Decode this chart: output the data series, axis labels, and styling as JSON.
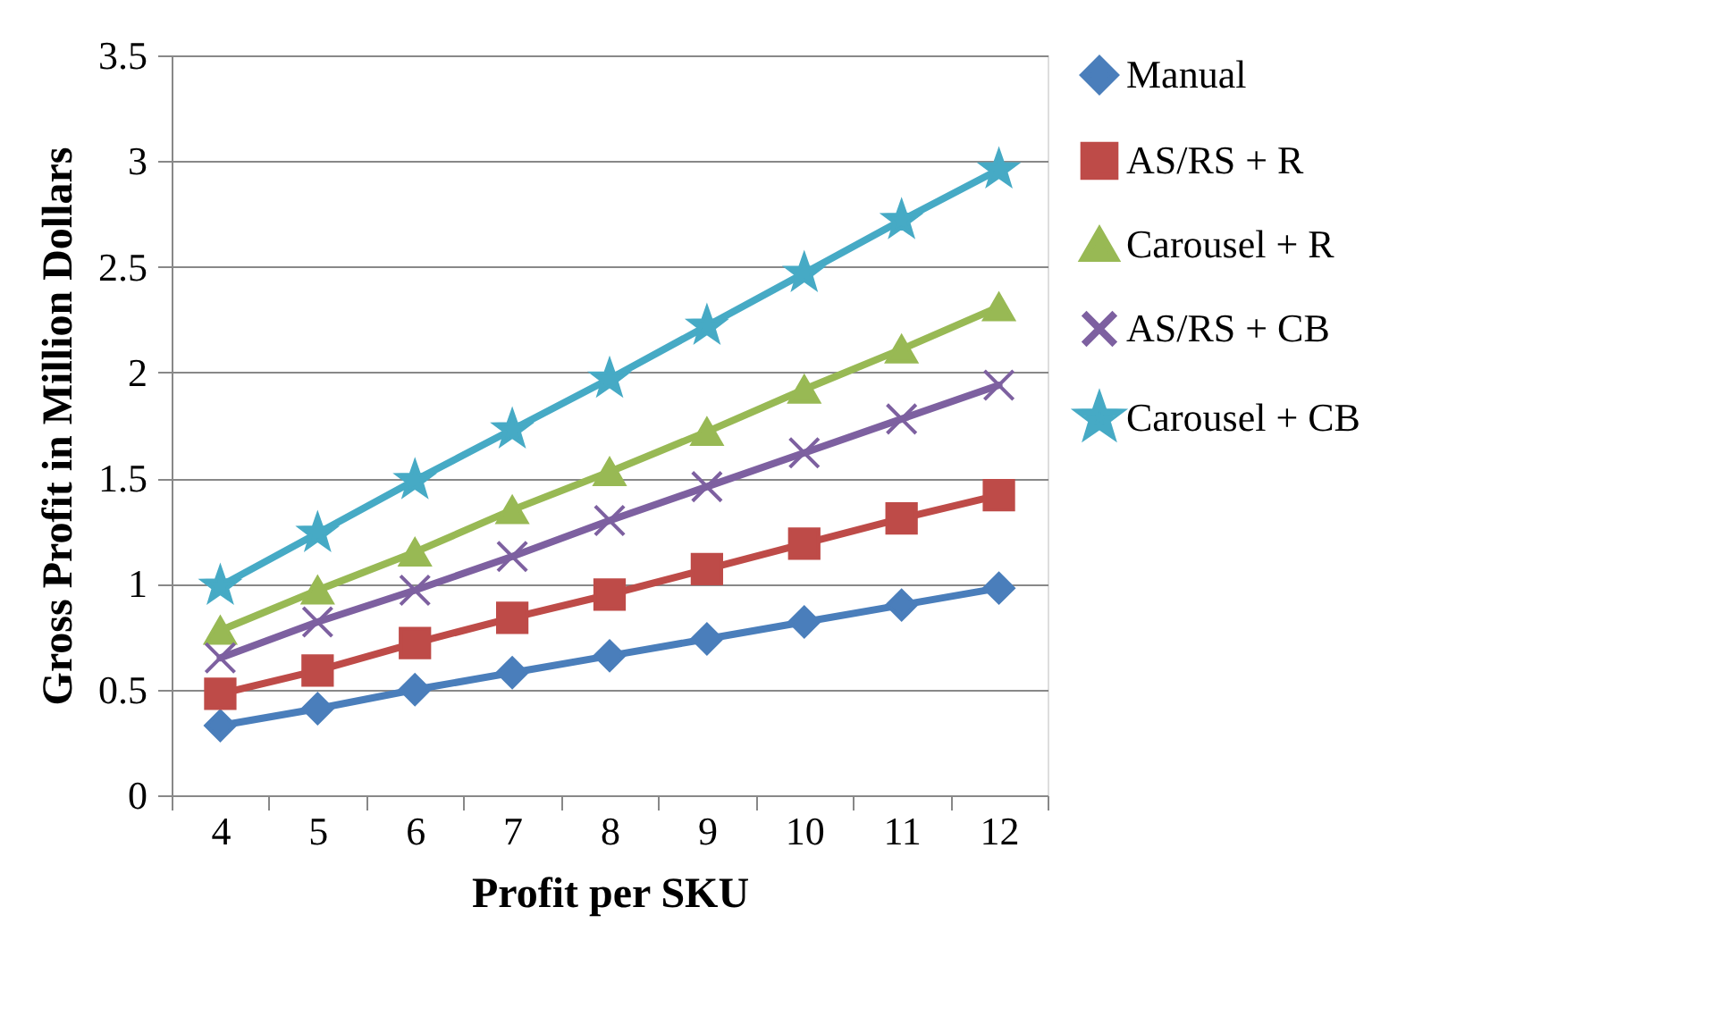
{
  "chart_data": {
    "type": "line",
    "xlabel": "Profit per SKU",
    "ylabel": "Gross Profit in Million Dollars",
    "categories": [
      "4",
      "5",
      "6",
      "7",
      "8",
      "9",
      "10",
      "11",
      "12"
    ],
    "series": [
      {
        "name": "Manual",
        "color": "#4a7ebb",
        "marker": "diamond",
        "values": [
          0.33,
          0.41,
          0.5,
          0.58,
          0.66,
          0.74,
          0.82,
          0.9,
          0.98
        ]
      },
      {
        "name": "AS/RS  + R",
        "color": "#be4b48",
        "marker": "square",
        "values": [
          0.48,
          0.59,
          0.72,
          0.84,
          0.95,
          1.07,
          1.19,
          1.31,
          1.42
        ]
      },
      {
        "name": "Carousel  + R",
        "color": "#98b954",
        "marker": "triangle",
        "values": [
          0.78,
          0.97,
          1.15,
          1.35,
          1.53,
          1.72,
          1.92,
          2.11,
          2.31
        ]
      },
      {
        "name": "AS/RS  + CB",
        "color": "#7d60a0",
        "marker": "cross",
        "values": [
          0.65,
          0.82,
          0.97,
          1.13,
          1.3,
          1.46,
          1.62,
          1.78,
          1.94
        ]
      },
      {
        "name": "Carousel  + CB",
        "color": "#46aac5",
        "marker": "star",
        "values": [
          0.99,
          1.24,
          1.49,
          1.73,
          1.97,
          2.22,
          2.47,
          2.72,
          2.96
        ]
      }
    ],
    "ylim": [
      0,
      3.5
    ],
    "yticks": [
      0,
      0.5,
      1,
      1.5,
      2,
      2.5,
      3,
      3.5
    ],
    "grid": "y",
    "legend": "right",
    "line_style": "solid"
  }
}
